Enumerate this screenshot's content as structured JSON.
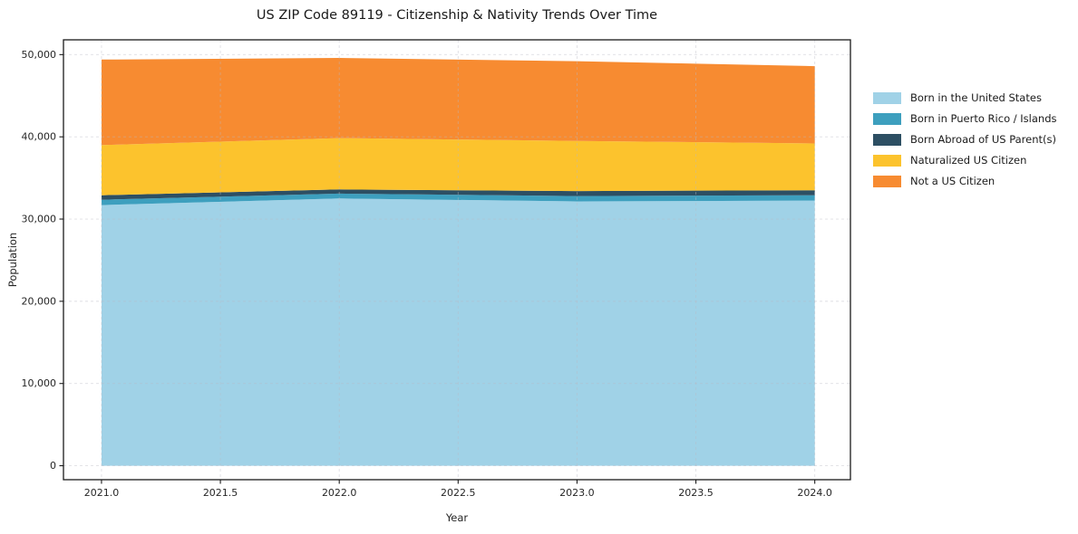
{
  "chart_data": {
    "type": "area",
    "stacked": true,
    "title": "US ZIP Code 89119 - Citizenship & Nativity Trends Over Time",
    "xlabel": "Year",
    "ylabel": "Population",
    "x": [
      2021,
      2022,
      2023,
      2024
    ],
    "xticks": [
      2021.0,
      2021.5,
      2022.0,
      2022.5,
      2023.0,
      2023.5,
      2024.0
    ],
    "yticks": [
      0,
      10000,
      20000,
      30000,
      40000,
      50000
    ],
    "xlim": [
      2020.84,
      2024.15
    ],
    "ylim": [
      -1700,
      51800
    ],
    "grid": true,
    "legend_position": "right",
    "series": [
      {
        "name": "Born in the United States",
        "color": "#a0d2e7",
        "values": [
          31700,
          32500,
          32150,
          32250
        ]
      },
      {
        "name": "Born in Puerto Rico / Islands",
        "color": "#3d9fbe",
        "values": [
          650,
          600,
          650,
          650
        ]
      },
      {
        "name": "Born Abroad of US Parent(s)",
        "color": "#2d4f63",
        "values": [
          550,
          500,
          600,
          600
        ]
      },
      {
        "name": "Naturalized US Citizen",
        "color": "#fcc32d",
        "values": [
          6100,
          6250,
          6100,
          5700
        ]
      },
      {
        "name": "Not a US Citizen",
        "color": "#f78b31",
        "values": [
          10400,
          9750,
          9700,
          9400
        ]
      }
    ]
  }
}
